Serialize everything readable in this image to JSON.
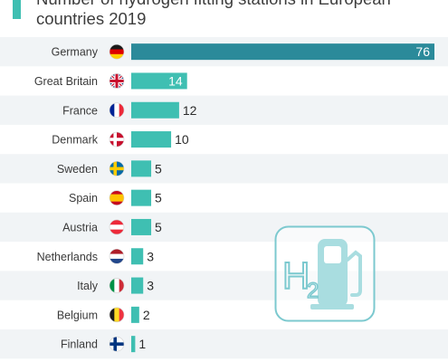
{
  "chart_data": {
    "type": "bar",
    "orientation": "horizontal",
    "title": "Number of hydrogen fitting stations in European countries 2019",
    "categories": [
      "Germany",
      "Great Britain",
      "France",
      "Denmark",
      "Sweden",
      "Spain",
      "Austria",
      "Netherlands",
      "Italy",
      "Belgium",
      "Finland"
    ],
    "values": [
      76,
      14,
      12,
      10,
      5,
      5,
      5,
      3,
      3,
      2,
      1
    ],
    "highlight_color": "#2b8a9a",
    "bar_color": "#3fbfb2",
    "stripe_color": "#f1f4f6",
    "xlim": [
      0,
      76
    ],
    "grid": false,
    "legend": "none"
  },
  "logo": {
    "icon": "hydrogen-fuel-pump-icon",
    "color": "#7cc9cf",
    "h": "H",
    "sub": "2"
  }
}
